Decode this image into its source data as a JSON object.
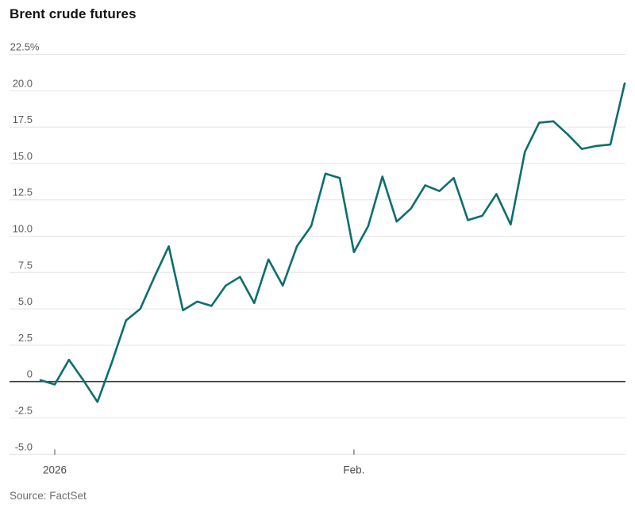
{
  "title": "Brent crude futures",
  "source": "Source: FactSet",
  "colors": {
    "line": "#0d6e6e",
    "grid": "#e4e4e4",
    "zero_line": "#3c3c3c",
    "y_label": "#5c5c5c",
    "x_label": "#4d4d4d",
    "tick_mark": "#808080",
    "title": "#141414",
    "source": "#6f6f6f",
    "background": "#ffffff"
  },
  "chart_data": {
    "type": "line",
    "title": "Brent crude futures",
    "unit_suffix": "%",
    "grid": "horizontal",
    "legend": "none",
    "zero_line": true,
    "ylim": [
      -5.0,
      22.5
    ],
    "yticks": [
      22.5,
      20.0,
      17.5,
      15.0,
      12.5,
      10.0,
      7.5,
      5.0,
      2.5,
      0,
      -2.5,
      -5.0
    ],
    "ytick_labels": [
      "22.5%",
      "20.0",
      "17.5",
      "15.0",
      "12.5",
      "10.0",
      "7.5",
      "5.0",
      "2.5",
      "0",
      "-2.5",
      "-5.0"
    ],
    "xticks": [
      {
        "index": 1,
        "label": "2026"
      },
      {
        "index": 22,
        "label": "Feb."
      }
    ],
    "values": [
      0.1,
      -0.2,
      1.5,
      0.1,
      -1.4,
      1.3,
      4.2,
      5.0,
      7.2,
      9.3,
      4.9,
      5.5,
      5.2,
      6.6,
      7.2,
      5.4,
      8.4,
      6.6,
      9.3,
      10.7,
      14.3,
      14.0,
      8.9,
      10.7,
      14.1,
      11.0,
      11.9,
      13.5,
      13.1,
      14.0,
      11.1,
      11.4,
      12.9,
      10.8,
      15.8,
      17.8,
      17.9,
      17.0,
      16.0,
      16.2,
      16.3,
      20.5
    ]
  }
}
